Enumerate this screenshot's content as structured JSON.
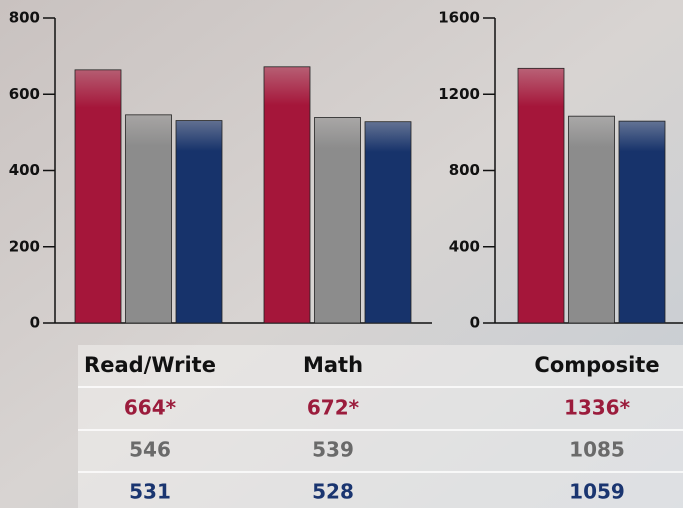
{
  "chart_data": [
    {
      "type": "bar",
      "categories": [
        "Read/Write",
        "Math"
      ],
      "series": [
        {
          "color": "#a5163a",
          "values": [
            664,
            672
          ],
          "value_labels": [
            "664*",
            "672*"
          ]
        },
        {
          "color": "#8c8c8c",
          "values": [
            546,
            539
          ]
        },
        {
          "color": "#17336b",
          "values": [
            531,
            528
          ]
        }
      ],
      "ylim": [
        0,
        800
      ],
      "yticks": [
        0,
        200,
        400,
        600,
        800
      ]
    },
    {
      "type": "bar",
      "categories": [
        "Composite"
      ],
      "series": [
        {
          "color": "#a5163a",
          "values": [
            1336
          ],
          "value_labels": [
            "1336*"
          ]
        },
        {
          "color": "#8c8c8c",
          "values": [
            1085
          ]
        },
        {
          "color": "#17336b",
          "values": [
            1059
          ]
        }
      ],
      "ylim": [
        0,
        1600
      ],
      "yticks": [
        0,
        400,
        800,
        1200,
        1600
      ]
    }
  ]
}
